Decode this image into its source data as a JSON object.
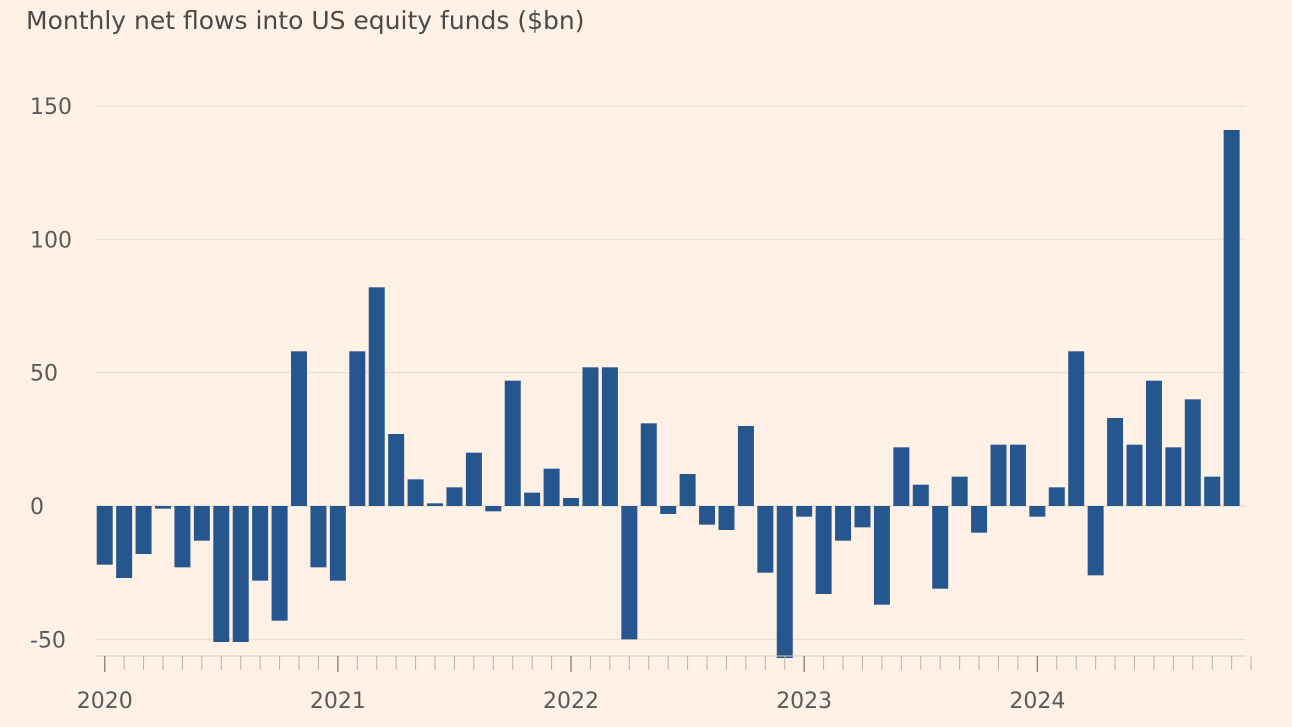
{
  "chart_data": {
    "type": "bar",
    "title": "Monthly net flows into US equity funds ($bn)",
    "xlabel": "",
    "ylabel": "",
    "ylim": [
      -57,
      150
    ],
    "yticks": [
      150,
      100,
      50,
      0,
      -50
    ],
    "ytick_labels": [
      "150",
      "100",
      "50",
      "0",
      "-50"
    ],
    "year_labels": [
      "2020",
      "2021",
      "2022",
      "2023",
      "2024"
    ],
    "start": "2020-01",
    "bar_color": "#25578e",
    "grid_color": "#e8dcd1",
    "values": [
      -22,
      -27,
      -18,
      -1,
      -23,
      -13,
      -51,
      -51,
      -28,
      -43,
      58,
      -23,
      -28,
      58,
      82,
      27,
      10,
      1,
      7,
      20,
      -2,
      47,
      5,
      14,
      3,
      52,
      52,
      -50,
      31,
      -3,
      12,
      -7,
      -9,
      30,
      -25,
      -57,
      -4,
      -33,
      -13,
      -8,
      -37,
      22,
      8,
      -31,
      11,
      -10,
      23,
      23,
      -4,
      7,
      58,
      -26,
      33,
      23,
      47,
      22,
      40,
      11,
      141
    ]
  }
}
